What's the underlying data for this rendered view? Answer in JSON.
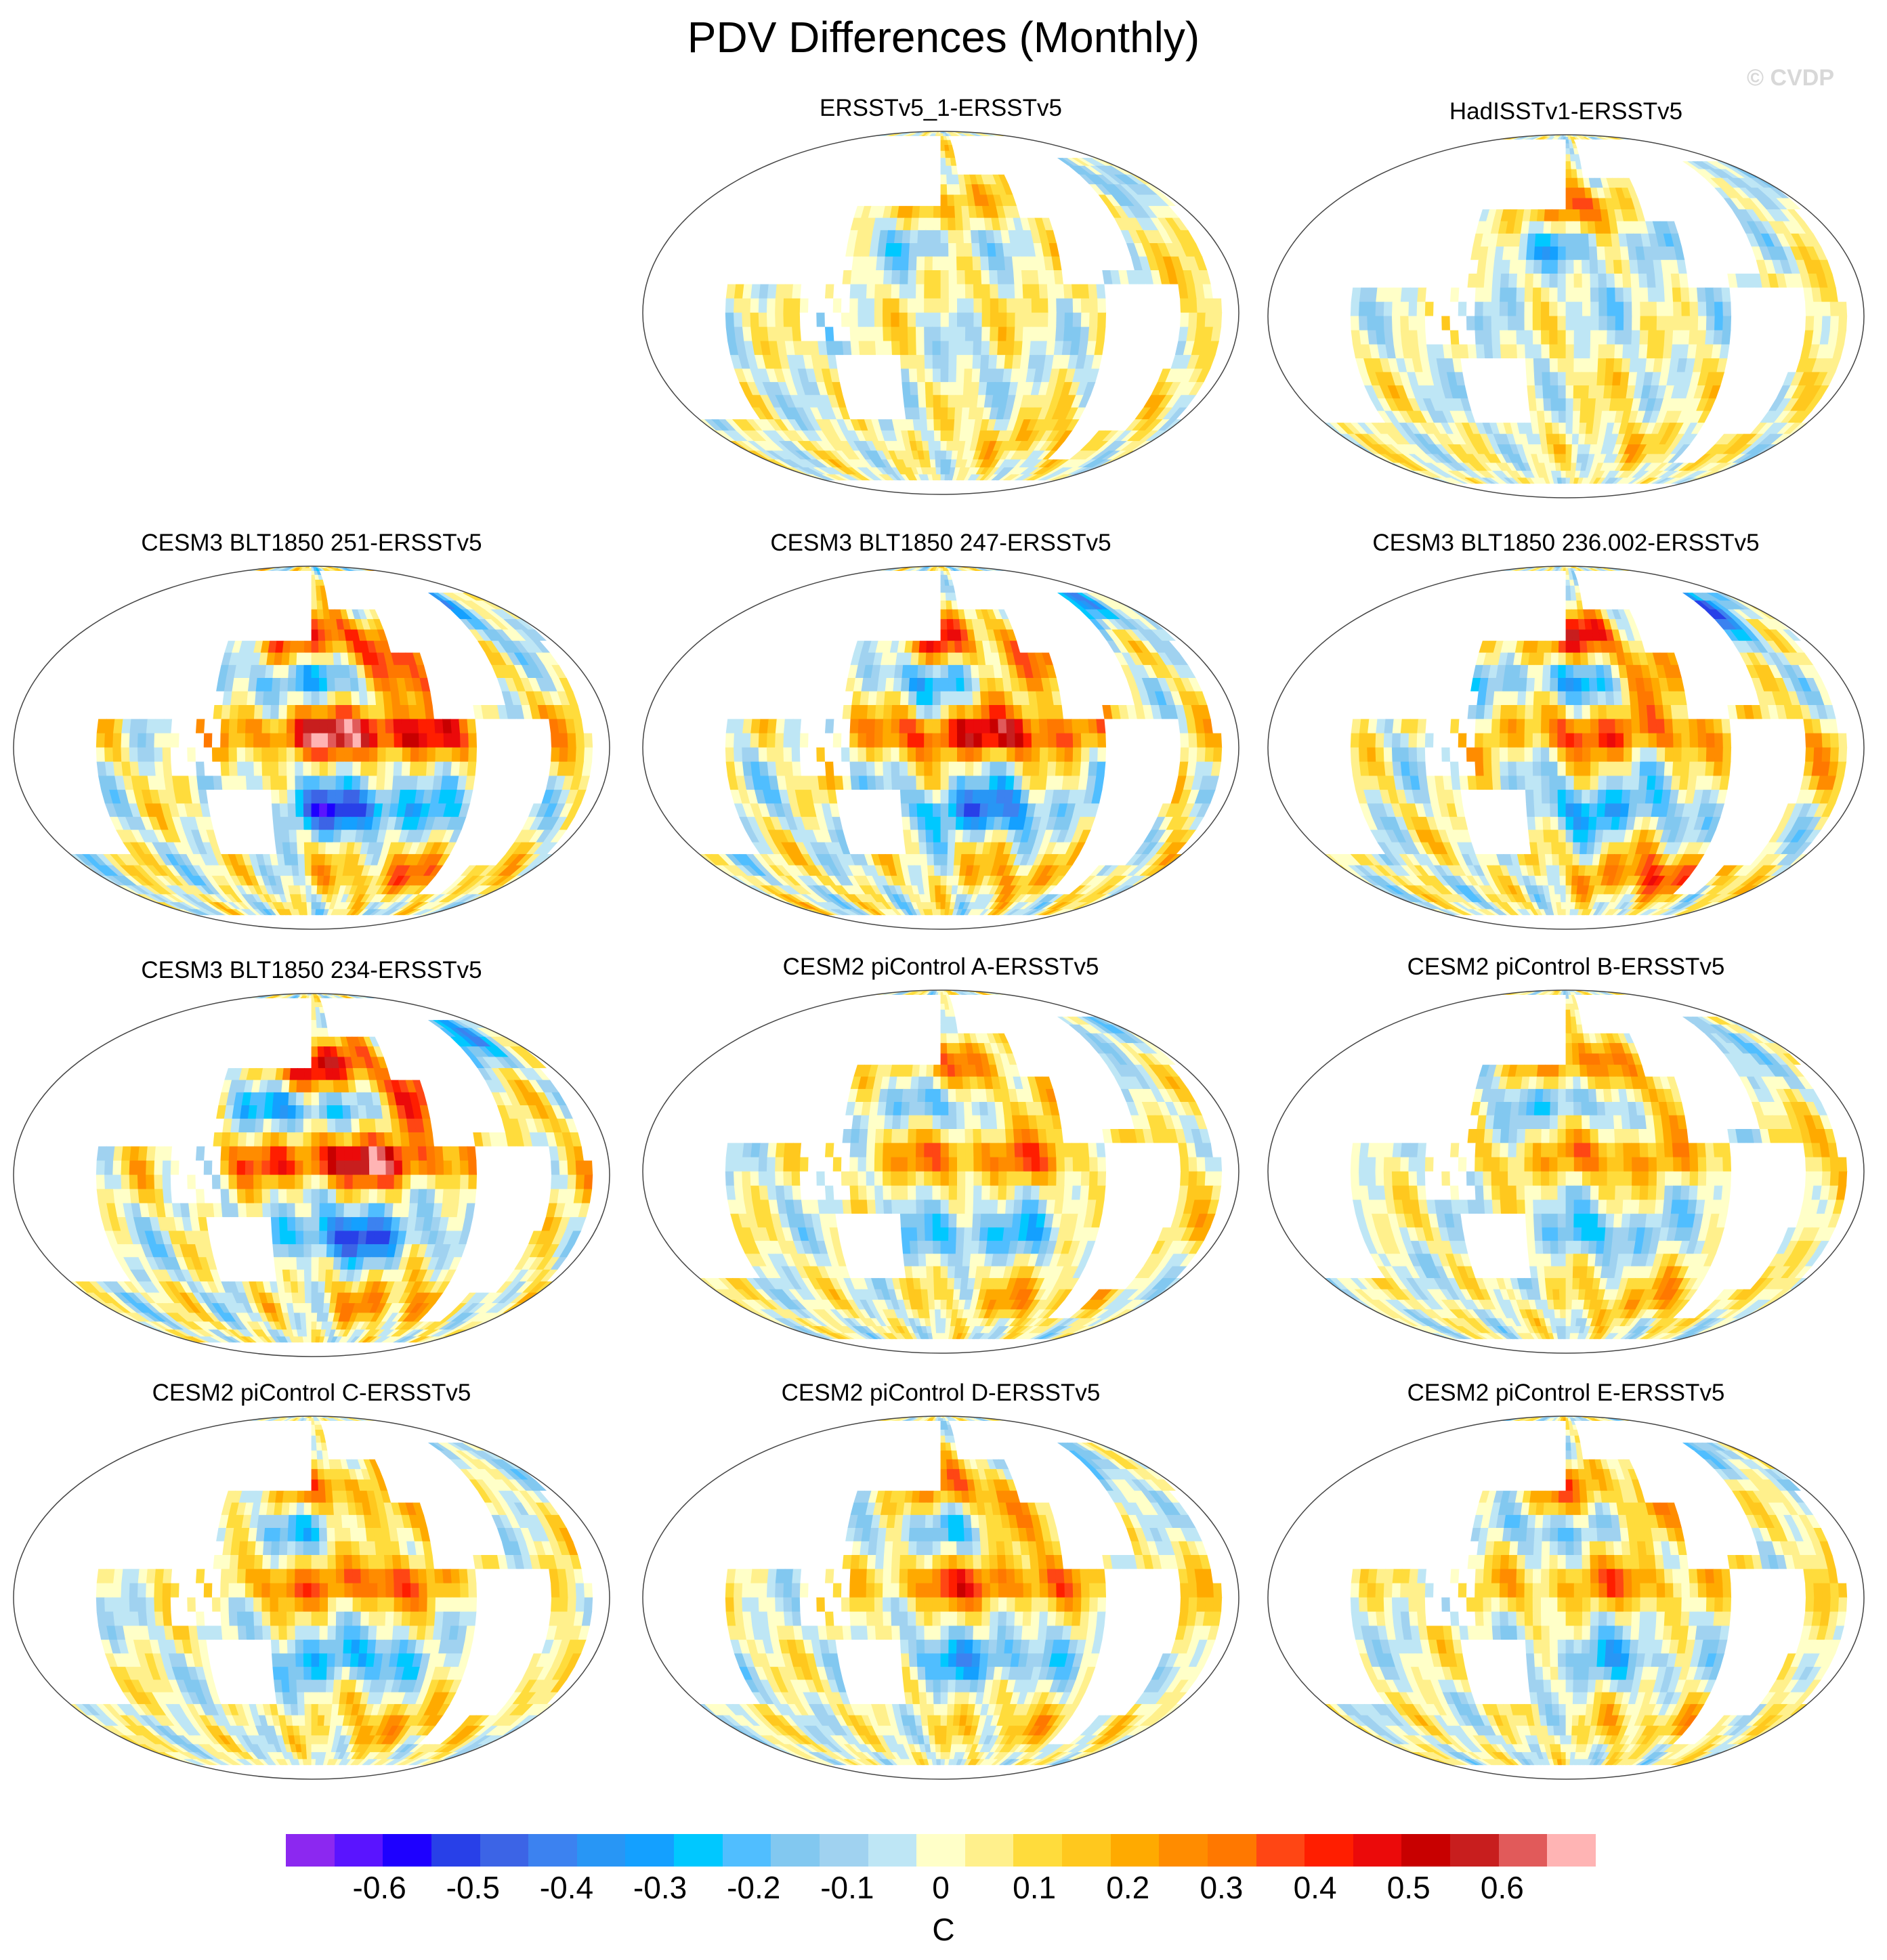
{
  "title": "PDV Differences (Monthly)",
  "watermark": "© CVDP",
  "panels": [
    {
      "title": "ERSSTv5_1-ERSSTv5",
      "pattern": {
        "pdo": 0.25,
        "eq": 0.05,
        "ne": -0.1,
        "south": 0.15,
        "noise": 0.12
      }
    },
    {
      "title": "HadISSTv1-ERSSTv5",
      "pattern": {
        "pdo": 0.35,
        "eq": -0.05,
        "ne": -0.15,
        "south": 0.1,
        "noise": 0.12
      }
    },
    {
      "title": "CESM3 BLT1850 251-ERSSTv5",
      "pattern": {
        "pdo": 0.45,
        "eq": 0.6,
        "ne": -0.2,
        "south": 0.25,
        "noise": 0.15
      }
    },
    {
      "title": "CESM3 BLT1850 247-ERSSTv5",
      "pattern": {
        "pdo": 0.4,
        "eq": 0.5,
        "ne": -0.35,
        "south": 0.2,
        "noise": 0.15
      }
    },
    {
      "title": "CESM3 BLT1850 236.002-ERSSTv5",
      "pattern": {
        "pdo": 0.45,
        "eq": 0.35,
        "ne": -0.4,
        "south": 0.35,
        "noise": 0.15
      }
    },
    {
      "title": "CESM3 BLT1850 234-ERSSTv5",
      "pattern": {
        "pdo": 0.55,
        "eq": 0.55,
        "ne": -0.3,
        "south": 0.25,
        "noise": 0.15
      }
    },
    {
      "title": "CESM2 piControl A-ERSSTv5",
      "pattern": {
        "pdo": 0.3,
        "eq": 0.3,
        "ne": -0.15,
        "south": 0.2,
        "noise": 0.12
      }
    },
    {
      "title": "CESM2 piControl B-ERSSTv5",
      "pattern": {
        "pdo": 0.35,
        "eq": 0.25,
        "ne": -0.15,
        "south": 0.2,
        "noise": 0.12
      }
    },
    {
      "title": "CESM2 piControl C-ERSSTv5",
      "pattern": {
        "pdo": 0.3,
        "eq": 0.35,
        "ne": -0.1,
        "south": 0.2,
        "noise": 0.12
      }
    },
    {
      "title": "CESM2 piControl D-ERSSTv5",
      "pattern": {
        "pdo": 0.3,
        "eq": 0.35,
        "ne": -0.2,
        "south": 0.15,
        "noise": 0.12
      }
    },
    {
      "title": "CESM2 piControl E-ERSSTv5",
      "pattern": {
        "pdo": 0.3,
        "eq": 0.25,
        "ne": -0.1,
        "south": 0.15,
        "noise": 0.12
      }
    }
  ],
  "colorbar": {
    "unit": "C",
    "colors": [
      "#8c28f0",
      "#5a14ff",
      "#1e00ff",
      "#2840e8",
      "#3c64e6",
      "#3c82f0",
      "#2896f5",
      "#14a0ff",
      "#00c8ff",
      "#50beff",
      "#82c8f0",
      "#a0d2f0",
      "#bee6f5",
      "#ffffc8",
      "#fff08c",
      "#ffdc3c",
      "#ffc81e",
      "#ffaa00",
      "#ff8c00",
      "#ff7800",
      "#ff4614",
      "#ff1e00",
      "#eb0a0a",
      "#c80000",
      "#c81e1e",
      "#e15a5a",
      "#ffb4b4"
    ],
    "labels": [
      "-0.6",
      "-0.5",
      "-0.4",
      "-0.3",
      "-0.2",
      "-0.1",
      "0",
      "0.1",
      "0.2",
      "0.3",
      "0.4",
      "0.5",
      "0.6"
    ],
    "label_values": [
      -0.6,
      -0.5,
      -0.4,
      -0.3,
      -0.2,
      -0.1,
      0,
      0.1,
      0.2,
      0.3,
      0.4,
      0.5,
      0.6
    ],
    "min": -0.7,
    "max": 0.7
  }
}
